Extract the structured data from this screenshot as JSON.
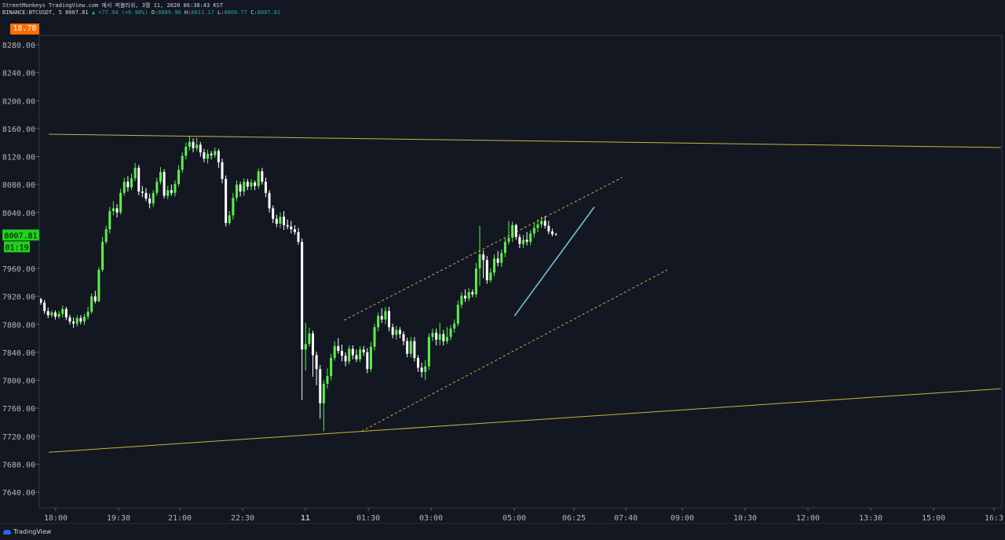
{
  "header": {
    "line1": "StreetMonkeys TradingView.com 에서 퍼블리쉬, 3월 11, 2020 06:38:43 KST",
    "symbol": "BINANCE:BTCUSDT, 5",
    "last": "8007.81",
    "change": "▲ +77.94 (+0.98%)",
    "o_label": "O:",
    "o": "8009.96",
    "h_label": "H:",
    "h": "8011.17",
    "l_label": "L:",
    "l": "8006.77",
    "c_label": "C:",
    "c": "8007.81"
  },
  "top_badge": "18.78",
  "price_badge": "8007.81",
  "countdown_badge": "01:19",
  "footer": {
    "logo_text": "TradingView"
  },
  "colors": {
    "background": "#131722",
    "up": "#5cf04a",
    "down": "#ffffff",
    "trendline": "#c9b53b",
    "fast_line": "#6ec1d8",
    "price_badge": "#22d11d",
    "top_badge": "#ff6d00"
  },
  "chart_data": {
    "type": "candlestick",
    "ylim": [
      7610,
      8300
    ],
    "y_ticks": [
      "8280.00",
      "8240.00",
      "8200.00",
      "8160.00",
      "8120.00",
      "8080.00",
      "8040.00",
      "7960.00",
      "7920.00",
      "7880.00",
      "7840.00",
      "7800.00",
      "7760.00",
      "7720.00",
      "7680.00",
      "7640.00"
    ],
    "x_ticks": [
      "18:00",
      "19:30",
      "21:00",
      "22:30",
      "11",
      "01:30",
      "03:00",
      "05:00",
      "06:25",
      "07:40",
      "09:00",
      "10:30",
      "12:00",
      "13:30",
      "15:00",
      "16:3"
    ],
    "last_price": 8007.81,
    "trend_lines": [
      {
        "name": "upper-channel-line",
        "from": [
          "17:50",
          8152
        ],
        "to": [
          "16:40",
          8133
        ]
      },
      {
        "name": "lower-channel-line",
        "from": [
          "17:50",
          7697
        ],
        "to": [
          "16:40",
          7788
        ]
      },
      {
        "name": "rising-channel-top",
        "from": [
          "00:55",
          7886
        ],
        "to": [
          "07:35",
          8090
        ],
        "dashed": true
      },
      {
        "name": "rising-channel-bottom",
        "from": [
          "01:20",
          7727
        ],
        "to": [
          "08:40",
          7958
        ],
        "dashed": true
      },
      {
        "name": "fast-trendline",
        "from": [
          "05:00",
          7892
        ],
        "to": [
          "06:55",
          8048
        ]
      }
    ],
    "candles": [
      [
        7916,
        7911,
        7918,
        7908
      ],
      [
        7911,
        7899,
        7915,
        7895
      ],
      [
        7899,
        7893,
        7904,
        7889
      ],
      [
        7893,
        7897,
        7900,
        7890
      ],
      [
        7897,
        7891,
        7900,
        7887
      ],
      [
        7891,
        7895,
        7899,
        7888
      ],
      [
        7895,
        7902,
        7907,
        7890
      ],
      [
        7902,
        7890,
        7905,
        7886
      ],
      [
        7890,
        7884,
        7894,
        7880
      ],
      [
        7884,
        7881,
        7890,
        7875
      ],
      [
        7881,
        7889,
        7893,
        7877
      ],
      [
        7889,
        7884,
        7893,
        7880
      ],
      [
        7884,
        7891,
        7895,
        7879
      ],
      [
        7891,
        7898,
        7905,
        7887
      ],
      [
        7898,
        7920,
        7924,
        7895
      ],
      [
        7920,
        7913,
        7928,
        7910
      ],
      [
        7913,
        7958,
        7962,
        7912
      ],
      [
        7958,
        7998,
        8005,
        7955
      ],
      [
        7998,
        8016,
        8021,
        7995
      ],
      [
        8016,
        8042,
        8048,
        8010
      ],
      [
        8042,
        8046,
        8056,
        8036
      ],
      [
        8046,
        8040,
        8052,
        8033
      ],
      [
        8040,
        8068,
        8074,
        8037
      ],
      [
        8068,
        8084,
        8090,
        8064
      ],
      [
        8084,
        8076,
        8092,
        8070
      ],
      [
        8076,
        8089,
        8096,
        8072
      ],
      [
        8089,
        8104,
        8111,
        8085
      ],
      [
        8104,
        8070,
        8108,
        8065
      ],
      [
        8070,
        8068,
        8078,
        8062
      ],
      [
        8068,
        8060,
        8075,
        8056
      ],
      [
        8060,
        8053,
        8067,
        8046
      ],
      [
        8053,
        8068,
        8072,
        8048
      ],
      [
        8068,
        8084,
        8090,
        8064
      ],
      [
        8084,
        8098,
        8105,
        8080
      ],
      [
        8098,
        8064,
        8102,
        8060
      ],
      [
        8064,
        8072,
        8078,
        8059
      ],
      [
        8072,
        8068,
        8080,
        8064
      ],
      [
        8068,
        8081,
        8086,
        8063
      ],
      [
        8081,
        8101,
        8108,
        8077
      ],
      [
        8101,
        8121,
        8126,
        8097
      ],
      [
        8121,
        8134,
        8140,
        8116
      ],
      [
        8134,
        8141,
        8149,
        8129
      ],
      [
        8141,
        8132,
        8146,
        8126
      ],
      [
        8132,
        8137,
        8147,
        8128
      ],
      [
        8137,
        8126,
        8141,
        8120
      ],
      [
        8126,
        8117,
        8131,
        8112
      ],
      [
        8117,
        8124,
        8130,
        8110
      ],
      [
        8124,
        8122,
        8128,
        8116
      ],
      [
        8122,
        8128,
        8133,
        8118
      ],
      [
        8128,
        8112,
        8131,
        8104
      ],
      [
        8112,
        8088,
        8117,
        8082
      ],
      [
        8088,
        8025,
        8093,
        8020
      ],
      [
        8025,
        8036,
        8042,
        8022
      ],
      [
        8036,
        8061,
        8068,
        8030
      ],
      [
        8061,
        8080,
        8086,
        8056
      ],
      [
        8080,
        8070,
        8084,
        8063
      ],
      [
        8070,
        8084,
        8089,
        8064
      ],
      [
        8084,
        8077,
        8088,
        8072
      ],
      [
        8077,
        8083,
        8088,
        8072
      ],
      [
        8083,
        8078,
        8086,
        8072
      ],
      [
        8078,
        8099,
        8103,
        8074
      ],
      [
        8099,
        8084,
        8104,
        8080
      ],
      [
        8084,
        8068,
        8090,
        8062
      ],
      [
        8068,
        8046,
        8072,
        8040
      ],
      [
        8046,
        8031,
        8050,
        8025
      ],
      [
        8031,
        8024,
        8037,
        8019
      ],
      [
        8024,
        8034,
        8040,
        8018
      ],
      [
        8034,
        8022,
        8042,
        8015
      ],
      [
        8022,
        8020,
        8030,
        8016
      ],
      [
        8020,
        8016,
        8028,
        8010
      ],
      [
        8016,
        8012,
        8022,
        8008
      ],
      [
        8012,
        7998,
        8018,
        7994
      ],
      [
        7998,
        7844,
        8003,
        7772
      ],
      [
        7844,
        7852,
        7882,
        7814
      ],
      [
        7852,
        7867,
        7875,
        7848
      ],
      [
        7867,
        7836,
        7871,
        7805
      ],
      [
        7836,
        7816,
        7841,
        7793
      ],
      [
        7816,
        7767,
        7822,
        7745
      ],
      [
        7767,
        7795,
        7800,
        7727
      ],
      [
        7795,
        7806,
        7817,
        7788
      ],
      [
        7806,
        7832,
        7838,
        7800
      ],
      [
        7832,
        7849,
        7856,
        7828
      ],
      [
        7849,
        7842,
        7860,
        7838
      ],
      [
        7842,
        7835,
        7851,
        7827
      ],
      [
        7835,
        7827,
        7840,
        7820
      ],
      [
        7827,
        7845,
        7850,
        7823
      ],
      [
        7845,
        7836,
        7850,
        7830
      ],
      [
        7836,
        7830,
        7844,
        7826
      ],
      [
        7830,
        7844,
        7849,
        7826
      ],
      [
        7844,
        7840,
        7849,
        7835
      ],
      [
        7840,
        7816,
        7846,
        7810
      ],
      [
        7816,
        7848,
        7855,
        7812
      ],
      [
        7848,
        7876,
        7881,
        7843
      ],
      [
        7876,
        7892,
        7897,
        7870
      ],
      [
        7892,
        7887,
        7903,
        7882
      ],
      [
        7887,
        7899,
        7905,
        7880
      ],
      [
        7899,
        7876,
        7905,
        7870
      ],
      [
        7876,
        7865,
        7881,
        7860
      ],
      [
        7865,
        7872,
        7878,
        7858
      ],
      [
        7872,
        7866,
        7876,
        7860
      ],
      [
        7866,
        7856,
        7870,
        7850
      ],
      [
        7856,
        7838,
        7861,
        7833
      ],
      [
        7838,
        7856,
        7862,
        7833
      ],
      [
        7856,
        7832,
        7862,
        7827
      ],
      [
        7832,
        7818,
        7836,
        7812
      ],
      [
        7818,
        7812,
        7825,
        7804
      ],
      [
        7812,
        7820,
        7829,
        7800
      ],
      [
        7820,
        7862,
        7867,
        7815
      ],
      [
        7862,
        7868,
        7874,
        7856
      ],
      [
        7868,
        7858,
        7874,
        7850
      ],
      [
        7858,
        7866,
        7882,
        7850
      ],
      [
        7866,
        7856,
        7872,
        7850
      ],
      [
        7856,
        7862,
        7876,
        7852
      ],
      [
        7862,
        7874,
        7879,
        7857
      ],
      [
        7874,
        7881,
        7887,
        7868
      ],
      [
        7881,
        7908,
        7914,
        7877
      ],
      [
        7908,
        7921,
        7926,
        7903
      ],
      [
        7921,
        7917,
        7930,
        7912
      ],
      [
        7917,
        7926,
        7932,
        7913
      ],
      [
        7926,
        7923,
        7930,
        7919
      ],
      [
        7923,
        7960,
        7968,
        7919
      ],
      [
        7960,
        7980,
        8021,
        7935
      ],
      [
        7980,
        7972,
        7986,
        7946
      ],
      [
        7972,
        7943,
        7978,
        7938
      ],
      [
        7943,
        7954,
        7960,
        7940
      ],
      [
        7954,
        7974,
        7980,
        7949
      ],
      [
        7974,
        7968,
        7985,
        7963
      ],
      [
        7968,
        7982,
        7987,
        7962
      ],
      [
        7982,
        7998,
        8003,
        7976
      ],
      [
        7998,
        8004,
        8028,
        7994
      ],
      [
        8004,
        8022,
        8027,
        7998
      ],
      [
        8022,
        8005,
        8024,
        8001
      ],
      [
        8005,
        7995,
        8009,
        7989
      ],
      [
        7995,
        8001,
        8008,
        7989
      ],
      [
        8001,
        7998,
        8012,
        7993
      ],
      [
        7998,
        8010,
        8015,
        7993
      ],
      [
        8010,
        8018,
        8025,
        8004
      ],
      [
        8018,
        8023,
        8030,
        8012
      ],
      [
        8023,
        8028,
        8034,
        8018
      ],
      [
        8028,
        8021,
        8035,
        8017
      ],
      [
        8021,
        8013,
        8028,
        8009
      ],
      [
        8013,
        8009,
        8017,
        8006
      ],
      [
        8009,
        8008,
        8011,
        8007
      ]
    ]
  }
}
